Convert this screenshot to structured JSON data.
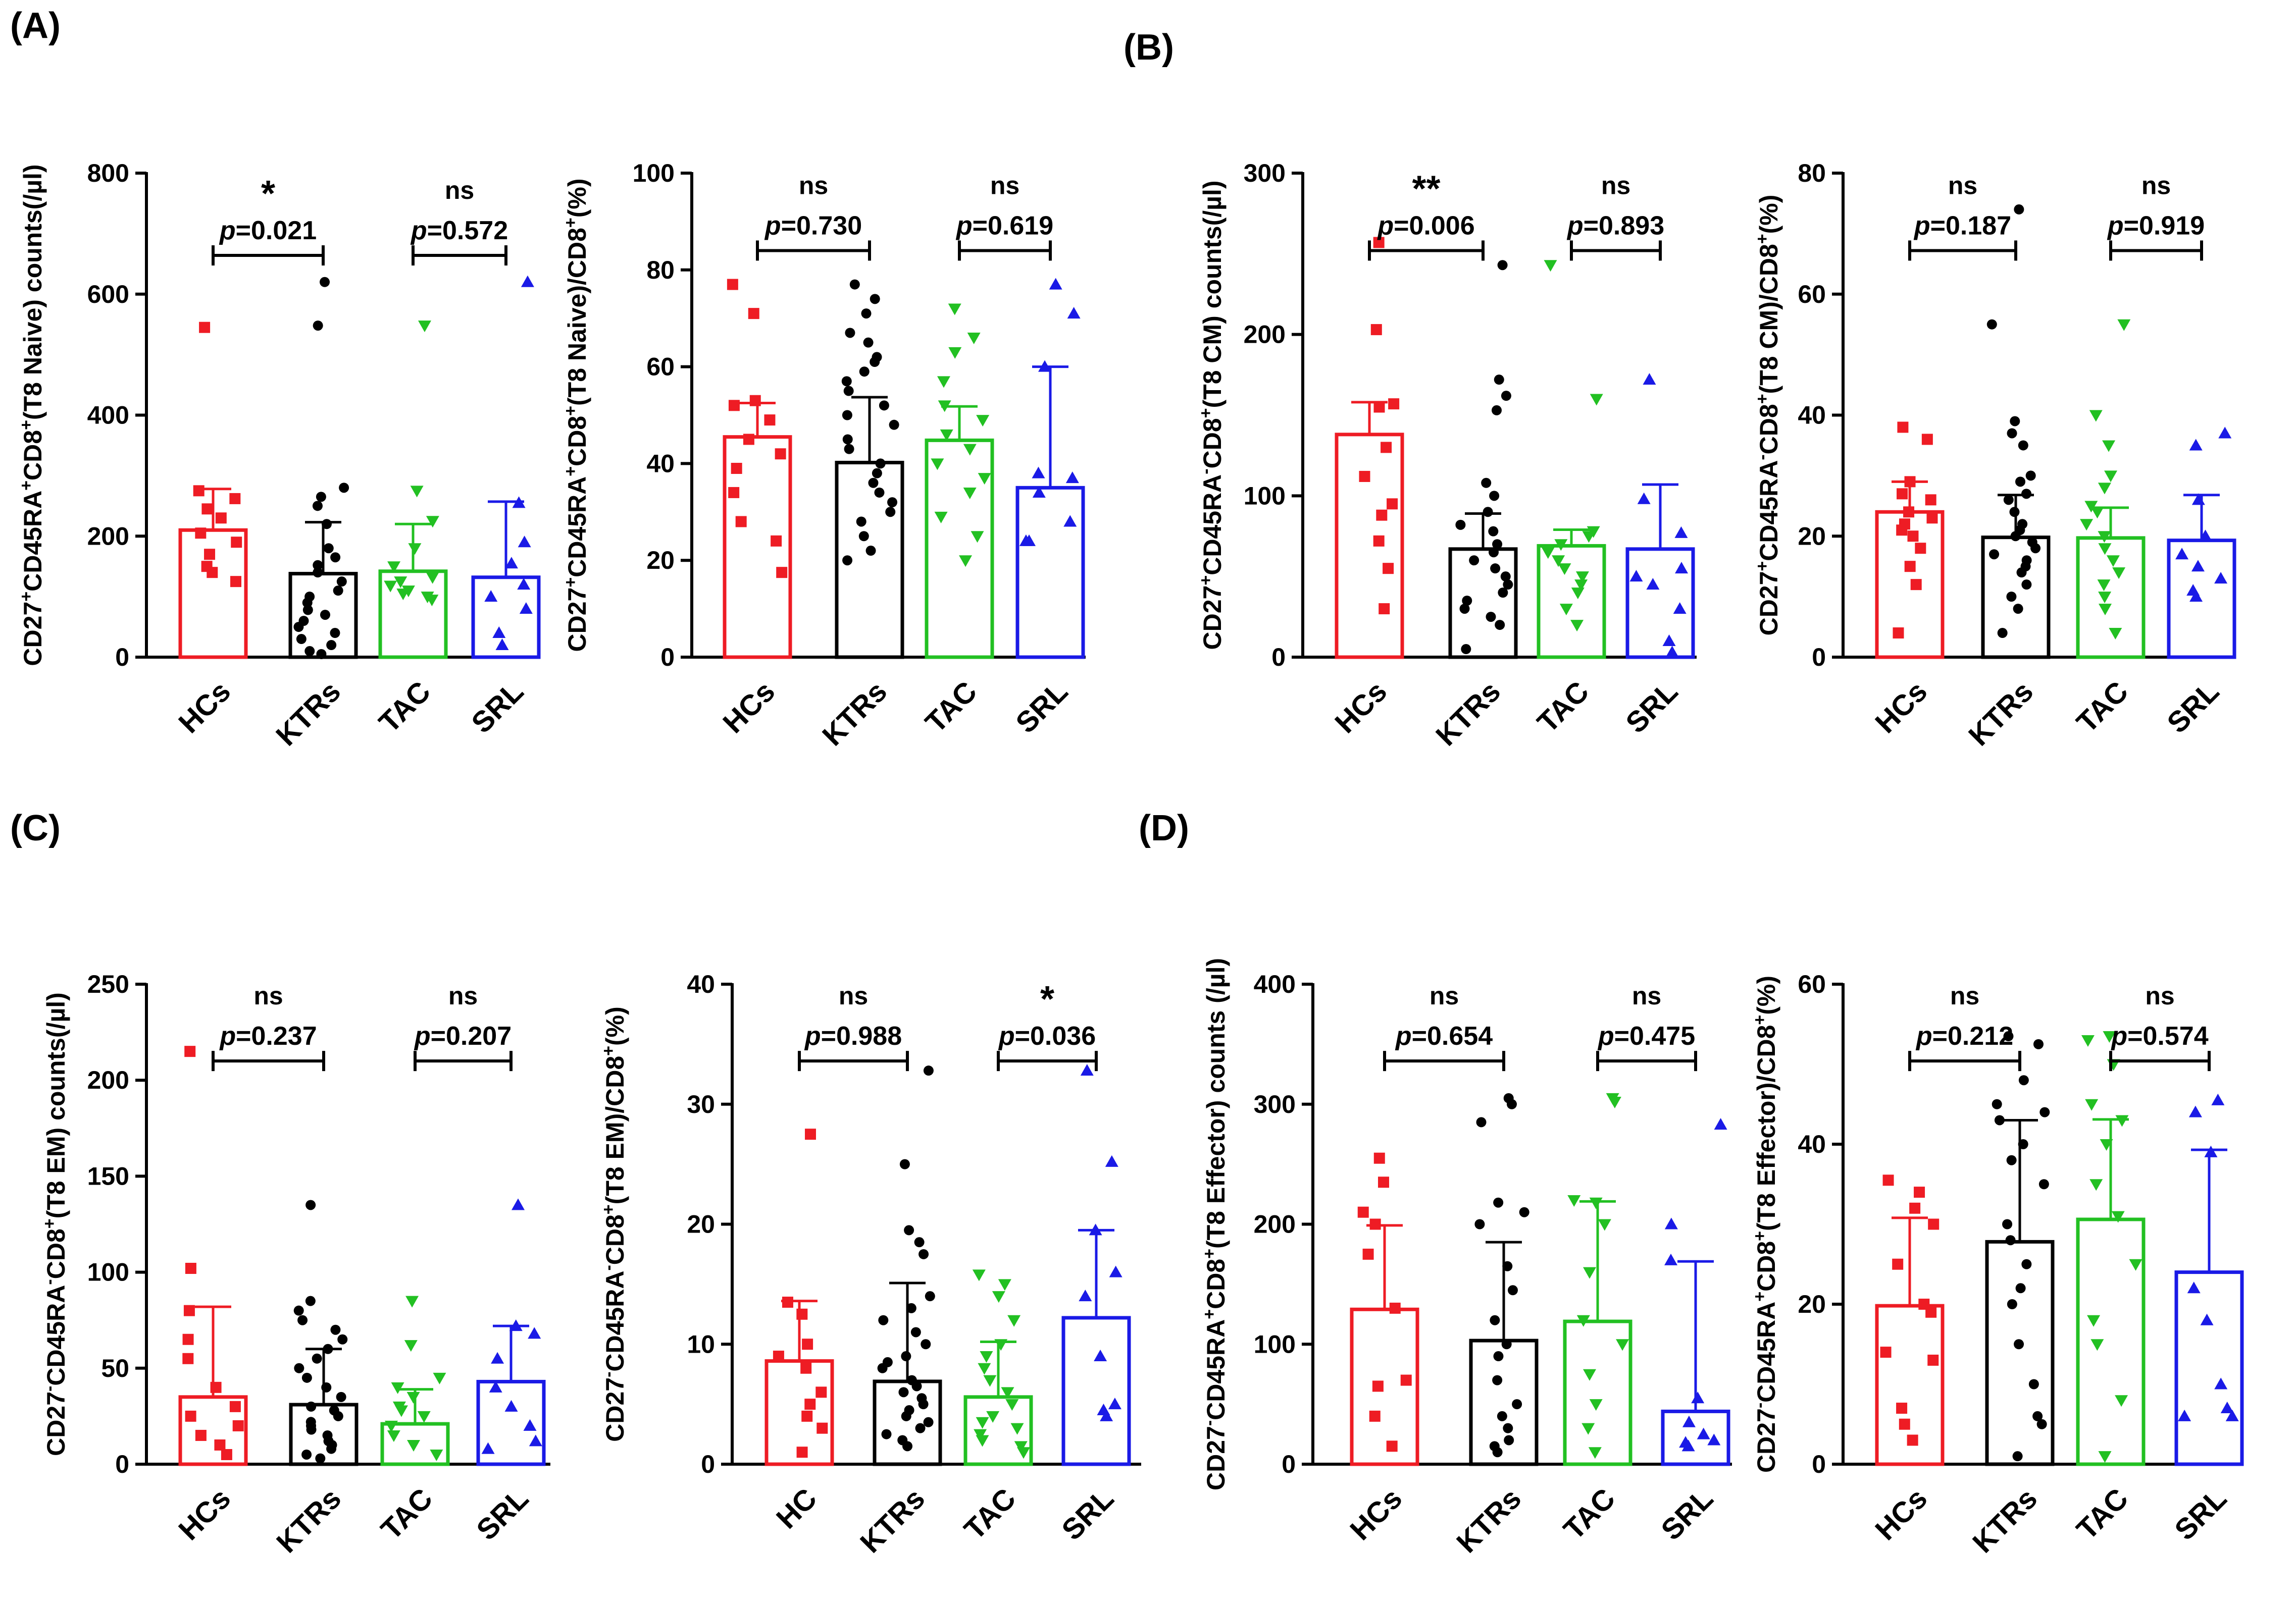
{
  "colors": {
    "HCs": "#ee1c24",
    "KTRs": "#000000",
    "TAC": "#22c022",
    "SRL": "#1a1ae6"
  },
  "chart_data": [
    {
      "type": "bar",
      "panel": "(A)",
      "ylabel_parts": [
        "CD27",
        "+",
        "CD45RA",
        "+",
        "CD8",
        "+",
        "(T8 Naive) counts(/µl)"
      ],
      "ylim": [
        0,
        800
      ],
      "yticks": [
        0,
        200,
        400,
        600,
        800
      ],
      "categories": [
        "HCs",
        "KTRs",
        "TAC",
        "SRL"
      ],
      "values": [
        210,
        138,
        142,
        132
      ],
      "errors": [
        68,
        85,
        78,
        125
      ],
      "points": [
        [
          545,
          275,
          262,
          245,
          230,
          205,
          190,
          170,
          150,
          140,
          125
        ],
        [
          620,
          548,
          280,
          265,
          250,
          220,
          180,
          165,
          152,
          140,
          125,
          110,
          100,
          90,
          78,
          70,
          60,
          50,
          40,
          30,
          20,
          10,
          5
        ],
        [
          548,
          275,
          225,
          180,
          150,
          132,
          125,
          118,
          110,
          105,
          100,
          95
        ],
        [
          620,
          255,
          190,
          155,
          120,
          100,
          80,
          40,
          20
        ]
      ],
      "comparisons": [
        {
          "star": "*",
          "p": "=0.021"
        },
        {
          "star": "ns",
          "p": "=0.572"
        }
      ]
    },
    {
      "type": "bar",
      "panel": "",
      "ylabel_parts": [
        "CD27",
        "+",
        "CD45RA",
        "+",
        "CD8",
        "+",
        "(T8 Naive)/CD8",
        "+",
        "(%)"
      ],
      "ylim": [
        0,
        100
      ],
      "yticks": [
        0,
        20,
        40,
        60,
        80,
        100
      ],
      "categories": [
        "HCs",
        "KTRs",
        "TAC",
        "SRL"
      ],
      "values": [
        45.5,
        40.2,
        44.8,
        35
      ],
      "errors": [
        7,
        13.5,
        7,
        25
      ],
      "points": [
        [
          77,
          71,
          53,
          52,
          49,
          45,
          42,
          39,
          34,
          28,
          24,
          17.5
        ],
        [
          77,
          74,
          71,
          67,
          65,
          62,
          61,
          59,
          57,
          55,
          52,
          50,
          48,
          45,
          43,
          40,
          38,
          36,
          34,
          32,
          30,
          28,
          25,
          22,
          20
        ],
        [
          72,
          66,
          63,
          57,
          52,
          49,
          46,
          43,
          40,
          37,
          34,
          29,
          25,
          20
        ],
        [
          77,
          71,
          60,
          38,
          37,
          34,
          28,
          24,
          24
        ]
      ],
      "comparisons": [
        {
          "star": "ns",
          "p": "=0.730"
        },
        {
          "star": "ns",
          "p": "=0.619"
        }
      ]
    },
    {
      "type": "bar",
      "panel": "(B)",
      "ylabel_parts": [
        "CD27",
        "+",
        "CD45RA",
        "-",
        "CD8",
        "+",
        "(T8 CM) counts(/µl)"
      ],
      "ylim": [
        0,
        300
      ],
      "yticks": [
        0,
        100,
        200,
        300
      ],
      "categories": [
        "HCs",
        "KTRs",
        "TAC",
        "SRL"
      ],
      "values": [
        138,
        67,
        69,
        67
      ],
      "errors": [
        20,
        22,
        10,
        40
      ],
      "points": [
        [
          257,
          203,
          157,
          155,
          130,
          112,
          95,
          88,
          72,
          55,
          30
        ],
        [
          243,
          172,
          162,
          153,
          108,
          100,
          90,
          82,
          78,
          70,
          65,
          60,
          55,
          50,
          45,
          40,
          35,
          30,
          25,
          20,
          5
        ],
        [
          243,
          160,
          78,
          75,
          70,
          65,
          60,
          55,
          50,
          45,
          40,
          30,
          20
        ],
        [
          172,
          98,
          77,
          55,
          50,
          45,
          30,
          10,
          3
        ]
      ],
      "comparisons": [
        {
          "star": "**",
          "p": "=0.006"
        },
        {
          "star": "ns",
          "p": "=0.893"
        }
      ]
    },
    {
      "type": "bar",
      "panel": "",
      "ylabel_parts": [
        "CD27",
        "+",
        "CD45RA",
        "-",
        "CD8",
        "+",
        "(T8 CM)/CD8",
        "+",
        "(%)"
      ],
      "ylim": [
        0,
        80
      ],
      "yticks": [
        0,
        20,
        40,
        60,
        80
      ],
      "categories": [
        "HCs",
        "KTRs",
        "TAC",
        "SRL"
      ],
      "values": [
        24,
        19.8,
        19.7,
        19.3
      ],
      "errors": [
        5,
        7,
        5,
        7.5
      ],
      "points": [
        [
          38,
          36,
          29,
          27,
          26,
          24,
          23,
          22,
          21,
          20,
          18,
          15,
          12,
          4
        ],
        [
          74,
          55,
          39,
          37,
          35,
          30,
          29,
          27,
          26,
          24,
          22,
          21,
          20,
          19,
          18,
          17,
          16,
          15,
          14,
          12,
          10,
          8,
          4
        ],
        [
          55,
          40,
          35,
          30,
          28,
          25,
          24,
          22,
          20,
          18,
          16,
          14,
          12,
          10,
          8,
          4
        ],
        [
          37,
          35,
          26,
          20,
          17,
          15,
          13,
          11,
          10
        ]
      ],
      "comparisons": [
        {
          "star": "ns",
          "p": "=0.187"
        },
        {
          "star": "ns",
          "p": "=0.919"
        }
      ]
    },
    {
      "type": "bar",
      "panel": "(C)",
      "ylabel_parts": [
        "CD27",
        "-",
        "CD45RA",
        "-",
        "CD8",
        "+",
        "(T8 EM) counts(/µl)"
      ],
      "ylim": [
        0,
        250
      ],
      "yticks": [
        0,
        50,
        100,
        150,
        200,
        250
      ],
      "categories": [
        "HCs",
        "KTRs",
        "TAC",
        "SRL"
      ],
      "values": [
        35,
        31,
        21,
        43
      ],
      "errors": [
        47,
        29,
        18,
        29
      ],
      "points": [
        [
          215,
          102,
          80,
          65,
          55,
          40,
          30,
          25,
          20,
          15,
          10,
          5
        ],
        [
          135,
          85,
          80,
          75,
          70,
          65,
          60,
          55,
          50,
          45,
          40,
          35,
          30,
          28,
          25,
          22,
          20,
          18,
          15,
          12,
          10,
          8,
          5,
          3
        ],
        [
          85,
          62,
          45,
          40,
          35,
          30,
          28,
          25,
          20,
          15,
          10,
          5
        ],
        [
          135,
          72,
          68,
          55,
          40,
          30,
          20,
          12,
          8
        ]
      ],
      "comparisons": [
        {
          "star": "ns",
          "p": "=0.237"
        },
        {
          "star": "ns",
          "p": "=0.207"
        }
      ]
    },
    {
      "type": "bar",
      "panel": "",
      "ylabel_parts": [
        "CD27",
        "-",
        "CD45RA",
        "-",
        "CD8",
        "+",
        "(T8 EM)/CD8",
        "+",
        "(%)"
      ],
      "ylim": [
        0,
        40
      ],
      "yticks": [
        0,
        10,
        20,
        30,
        40
      ],
      "categories": [
        "HC",
        "KTRs",
        "TAC",
        "SRL"
      ],
      "values": [
        8.6,
        6.9,
        5.6,
        12.2
      ],
      "errors": [
        5,
        8.2,
        4.6,
        7.3
      ],
      "points": [
        [
          27.5,
          13.5,
          12.5,
          10,
          9,
          8,
          6,
          5,
          4,
          3,
          1
        ],
        [
          32.8,
          25,
          19.5,
          18.5,
          17.5,
          14,
          13,
          12,
          11,
          10,
          9,
          8.5,
          8,
          7,
          6.5,
          6,
          5.5,
          5,
          4.5,
          4,
          3.5,
          3,
          2.5,
          2,
          1.5
        ],
        [
          15.8,
          15,
          14,
          12,
          10,
          9,
          8,
          7,
          6,
          5,
          4,
          3.5,
          3,
          2.5,
          2,
          1.5,
          1
        ],
        [
          32.8,
          25.2,
          19.5,
          16,
          14,
          9,
          5,
          4.5,
          4
        ]
      ],
      "comparisons": [
        {
          "star": "ns",
          "p": "=0.988"
        },
        {
          "star": "*",
          "p": "=0.036"
        }
      ]
    },
    {
      "type": "bar",
      "panel": "(D)",
      "ylabel_parts": [
        "CD27",
        "-",
        "CD45RA",
        "+",
        "CD8",
        "+",
        "(T8 Effector) counts (/µl)"
      ],
      "ylim": [
        0,
        400
      ],
      "yticks": [
        0,
        100,
        200,
        300,
        400
      ],
      "categories": [
        "HCs",
        "KTRs",
        "TAC",
        "SRL"
      ],
      "values": [
        129,
        103,
        119,
        44
      ],
      "errors": [
        70,
        82,
        100,
        125
      ],
      "points": [
        [
          255,
          235,
          210,
          200,
          175,
          130,
          70,
          65,
          40,
          15
        ],
        [
          305,
          300,
          285,
          218,
          210,
          200,
          165,
          145,
          120,
          100,
          90,
          70,
          50,
          40,
          30,
          20,
          15,
          10
        ],
        [
          305,
          302,
          220,
          218,
          200,
          160,
          120,
          100,
          75,
          50,
          30,
          10
        ],
        [
          283,
          200,
          170,
          55,
          35,
          25,
          20,
          18,
          15
        ]
      ],
      "comparisons": [
        {
          "star": "ns",
          "p": "=0.654"
        },
        {
          "star": "ns",
          "p": "=0.475"
        }
      ]
    },
    {
      "type": "bar",
      "panel": "",
      "ylabel_parts": [
        "CD27",
        "-",
        "CD45RA",
        "+",
        "CD8",
        "+",
        "(T8 Effector)/CD8",
        "+",
        "(%)"
      ],
      "ylim": [
        0,
        60
      ],
      "yticks": [
        0,
        20,
        40,
        60
      ],
      "categories": [
        "HCs",
        "KTRs",
        "TAC",
        "SRL"
      ],
      "values": [
        19.8,
        27.8,
        30.6,
        24
      ],
      "errors": [
        11,
        15.2,
        12.5,
        15.3
      ],
      "points": [
        [
          35.5,
          34,
          32,
          30,
          25,
          20,
          19,
          14,
          13,
          7,
          5,
          3
        ],
        [
          53.5,
          52.5,
          48,
          45,
          44,
          43,
          40,
          38,
          35,
          30,
          28,
          25,
          22,
          20,
          15,
          10,
          6,
          5,
          1
        ],
        [
          53.5,
          53,
          50,
          45,
          43,
          40,
          35,
          31,
          25,
          18,
          15,
          8,
          1
        ],
        [
          45.5,
          44,
          39,
          22,
          18,
          10,
          7,
          6,
          6
        ]
      ],
      "comparisons": [
        {
          "star": "ns",
          "p": "=0.212"
        },
        {
          "star": "ns",
          "p": "=0.574"
        }
      ]
    }
  ]
}
